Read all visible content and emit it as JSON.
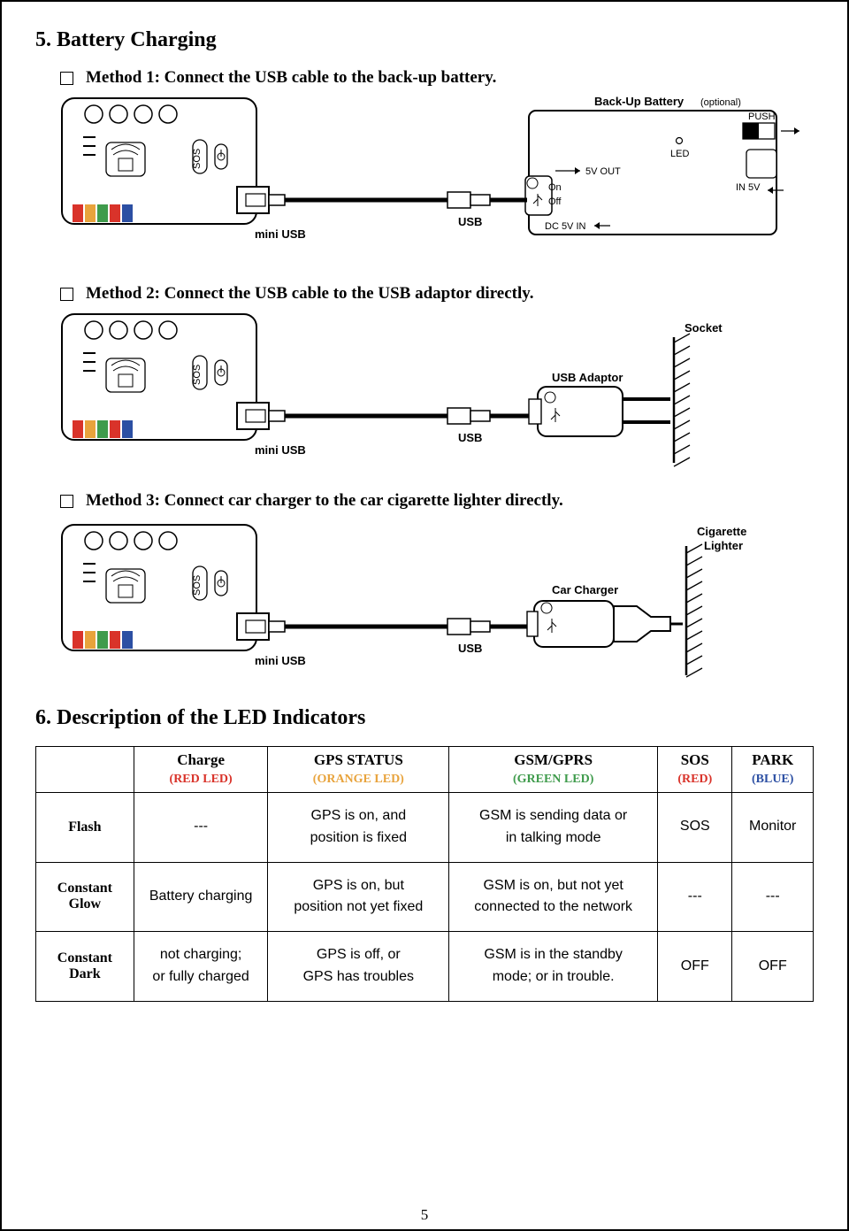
{
  "section5": {
    "heading": "5. Battery Charging",
    "method1": "Method 1: Connect the USB cable to the back-up battery.",
    "method2": "Method 2: Connect the USB cable to the USB adaptor directly.",
    "method3": "Method 3: Connect car charger to the car cigarette lighter directly."
  },
  "diagram_labels": {
    "miniUSB": "mini USB",
    "USB": "USB",
    "backup": "Back-Up Battery",
    "optional": "(optional)",
    "led": "LED",
    "push": "PUSH",
    "in5v": "IN 5V",
    "out5v": "5V OUT",
    "on": "On",
    "off": "Off",
    "dc5v": "DC 5V   IN",
    "socket": "Socket",
    "usbAdaptor": "USB Adaptor",
    "cigLighter": "Cigarette\nLighter",
    "carCharger": "Car Charger",
    "sos": "SOS"
  },
  "led_colors": {
    "c1": "#d9332a",
    "c2": "#e8a33c",
    "c3": "#3f9b4c",
    "c4": "#d9332a",
    "c5": "#2c4fa3"
  },
  "section6": {
    "heading": "6. Description of the LED Indicators",
    "columns": [
      {
        "title": "Charge",
        "sub": "(RED LED)",
        "color": "#d9332a",
        "width": "120"
      },
      {
        "title": "GPS STATUS",
        "sub": "(ORANGE LED)",
        "color": "#e8a33c",
        "width": "165"
      },
      {
        "title": "GSM/GPRS",
        "sub": "(GREEN LED)",
        "color": "#3f9b4c",
        "width": "185"
      },
      {
        "title": "SOS",
        "sub": "(RED)",
        "color": "#d9332a",
        "width": "70"
      },
      {
        "title": "PARK",
        "sub": "(BLUE)",
        "color": "#2c4fa3",
        "width": "70"
      }
    ],
    "rows": [
      {
        "label": "Flash",
        "cells": [
          "---",
          "GPS is on, and\nposition is fixed",
          "GSM is sending data or\nin talking mode",
          "SOS",
          "Monitor"
        ]
      },
      {
        "label": "Constant\nGlow",
        "cells": [
          "Battery charging",
          "GPS is on, but\nposition not yet fixed",
          "GSM is on, but not yet\nconnected to the network",
          "---",
          "---"
        ]
      },
      {
        "label": "Constant\nDark",
        "cells": [
          "not charging;\nor fully charged",
          "GPS is off, or\nGPS has troubles",
          "GSM is in the standby\nmode; or in trouble.",
          "OFF",
          "OFF"
        ]
      }
    ]
  },
  "pageNumber": "5"
}
